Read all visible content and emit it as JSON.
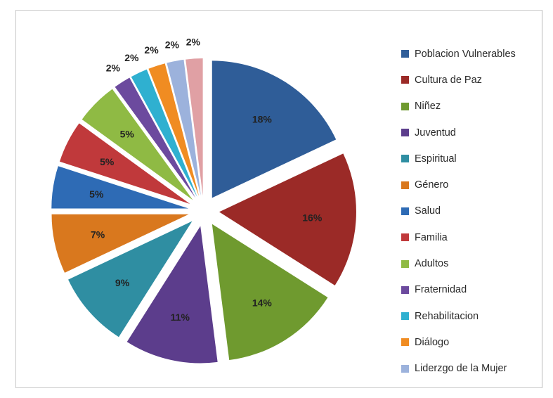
{
  "chart_data": {
    "type": "pie",
    "exploded": true,
    "legend_position": "right",
    "slices": [
      {
        "name": "Poblacion Vulnerables",
        "value": 18,
        "label": "18%",
        "color": "#2f5d98"
      },
      {
        "name": "Cultura de Paz",
        "value": 16,
        "label": "16%",
        "color": "#9b2a27"
      },
      {
        "name": "Niñez",
        "value": 14,
        "label": "14%",
        "color": "#6f9a2f"
      },
      {
        "name": "Juventud",
        "value": 11,
        "label": "11%",
        "color": "#5c3d8c"
      },
      {
        "name": "Espiritual",
        "value": 9,
        "label": "9%",
        "color": "#2f8ea2"
      },
      {
        "name": "Género",
        "value": 7,
        "label": "7%",
        "color": "#d9781e"
      },
      {
        "name": "Salud",
        "value": 5,
        "label": "5%",
        "color": "#2e6bb5"
      },
      {
        "name": "Familia",
        "value": 5,
        "label": "5%",
        "color": "#c0393b"
      },
      {
        "name": "Adultos",
        "value": 5,
        "label": "5%",
        "color": "#8fba44"
      },
      {
        "name": "Fraternidad",
        "value": 2,
        "label": "2%",
        "color": "#6c4a9e"
      },
      {
        "name": "Rehabilitacion",
        "value": 2,
        "label": "2%",
        "color": "#2fb0d0"
      },
      {
        "name": "Diálogo",
        "value": 2,
        "label": "2%",
        "color": "#f08c22"
      },
      {
        "name": "Liderzgo de la Mujer",
        "value": 2,
        "label": "2%",
        "color": "#9cb2dc"
      },
      {
        "name": "",
        "value": 2,
        "label": "2%",
        "color": "#e0a0a4"
      }
    ]
  }
}
